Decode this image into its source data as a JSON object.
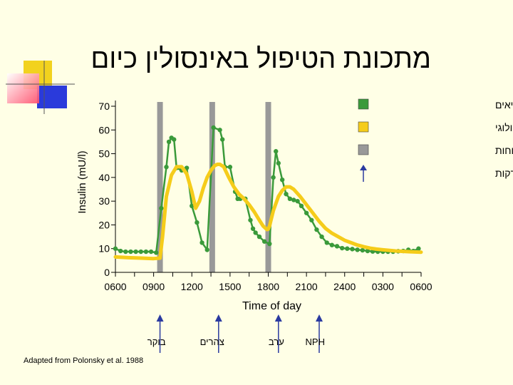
{
  "title": "מתכונת הטיפול באינסולין כיום",
  "source": "Adapted from Polonsky et al. 1988",
  "colors": {
    "healthy": "#3a9a3a",
    "pharm": "#f5cc1a",
    "meals": "#999999",
    "injections": "#2a3aa0",
    "background": "#ffffe6"
  },
  "legend": [
    {
      "label": "רמות אינסולין בבריאים",
      "color": "#3a9a3a",
      "kind": "square"
    },
    {
      "label": "אינסולין פרמקולוגי",
      "color": "#f5cc1a",
      "kind": "square"
    },
    {
      "label": "ארוחות",
      "color": "#999999",
      "kind": "square"
    },
    {
      "label": "זמן הזרקות",
      "color": "#2a3aa0",
      "kind": "arrow"
    }
  ],
  "injections": [
    {
      "label": "בוקר",
      "time": 9.5
    },
    {
      "label": "צהרים",
      "time": 14.1
    },
    {
      "label": "ערב",
      "time": 18.8
    },
    {
      "label": "NPH",
      "time": 22.0
    }
  ],
  "chart_data": {
    "type": "line",
    "xlabel": "Time of day",
    "ylabel": "Insulin (mU/l)",
    "xlim": [
      6,
      30
    ],
    "ylim": [
      0,
      70
    ],
    "xticks": [
      {
        "value": 6,
        "label": "0600"
      },
      {
        "value": 9,
        "label": "0900"
      },
      {
        "value": 12,
        "label": "1200"
      },
      {
        "value": 15,
        "label": "1500"
      },
      {
        "value": 18,
        "label": "1800"
      },
      {
        "value": 21,
        "label": "2100"
      },
      {
        "value": 24,
        "label": "2400"
      },
      {
        "value": 27,
        "label": "0300"
      },
      {
        "value": 30,
        "label": "0600"
      }
    ],
    "yticks": [
      0,
      10,
      20,
      30,
      40,
      50,
      60,
      70
    ],
    "meals": [
      9.5,
      13.6,
      18.0
    ],
    "series": [
      {
        "name": "רמות אינסולין בבריאים",
        "x": [
          6.0,
          6.4,
          6.8,
          7.2,
          7.6,
          8.0,
          8.4,
          8.8,
          9.2,
          9.6,
          10.0,
          10.2,
          10.4,
          10.6,
          10.8,
          11.2,
          11.6,
          12.0,
          12.4,
          12.8,
          13.2,
          13.7,
          14.2,
          14.4,
          14.6,
          15.0,
          15.4,
          15.6,
          15.8,
          16.2,
          16.6,
          16.8,
          17.0,
          17.3,
          17.7,
          18.1,
          18.4,
          18.6,
          18.8,
          19.1,
          19.4,
          19.7,
          20.0,
          20.3,
          20.6,
          21.0,
          21.4,
          21.8,
          22.2,
          22.6,
          23.0,
          23.4,
          23.8,
          24.2,
          24.6,
          25.0,
          25.4,
          25.8,
          26.2,
          26.6,
          27.0,
          27.4,
          27.8,
          28.2,
          28.6,
          29.0,
          29.4,
          29.8
        ],
        "y": [
          10.0,
          9.0,
          8.7,
          8.7,
          8.7,
          8.7,
          8.7,
          8.7,
          8.3,
          27.0,
          44.4,
          55.0,
          56.7,
          56.0,
          44.0,
          43.0,
          44.0,
          28.0,
          21.0,
          12.5,
          9.5,
          61.0,
          60.0,
          56.0,
          44.4,
          44.4,
          34.0,
          31.0,
          31.0,
          31.0,
          22.0,
          18.4,
          16.7,
          15.0,
          13.0,
          12.0,
          40.0,
          51.0,
          46.0,
          39.0,
          33.0,
          31.0,
          30.5,
          30.0,
          28.0,
          25.0,
          22.0,
          18.0,
          15.0,
          12.5,
          11.5,
          11.0,
          10.2,
          10.0,
          9.8,
          9.5,
          9.3,
          9.0,
          8.8,
          8.7,
          8.7,
          8.7,
          8.7,
          8.9,
          9.0,
          9.5,
          9.0,
          10.0
        ]
      },
      {
        "name": "אינסולין פרמקולוגי",
        "x": [
          6.0,
          7.0,
          8.0,
          9.0,
          9.5,
          9.7,
          10.0,
          10.4,
          10.8,
          11.2,
          11.6,
          12.0,
          12.3,
          12.6,
          12.9,
          13.2,
          13.5,
          13.8,
          14.0,
          14.2,
          14.5,
          14.9,
          15.3,
          15.7,
          16.1,
          16.5,
          16.9,
          17.3,
          17.6,
          17.9,
          18.0,
          18.1,
          18.4,
          18.8,
          19.1,
          19.4,
          19.7,
          20.0,
          20.5,
          21.0,
          21.5,
          22.0,
          22.5,
          23.0,
          23.5,
          24.0,
          24.5,
          25.0,
          25.5,
          26.0,
          26.5,
          27.0,
          28.0,
          29.0,
          30.0
        ],
        "y": [
          6.5,
          6.2,
          6.0,
          5.8,
          6.0,
          15.0,
          32.0,
          41.0,
          44.5,
          44.5,
          41.5,
          34.0,
          27.0,
          30.0,
          35.5,
          40.0,
          43.0,
          45.0,
          45.5,
          45.5,
          44.5,
          40.0,
          36.0,
          33.0,
          31.0,
          28.5,
          25.5,
          22.0,
          19.5,
          18.0,
          18.2,
          19.5,
          26.0,
          32.0,
          34.5,
          36.0,
          36.0,
          35.0,
          32.0,
          28.5,
          25.0,
          21.5,
          18.5,
          16.5,
          15.0,
          13.5,
          12.5,
          11.5,
          10.8,
          10.2,
          9.8,
          9.5,
          9.0,
          8.7,
          8.5
        ]
      }
    ]
  }
}
